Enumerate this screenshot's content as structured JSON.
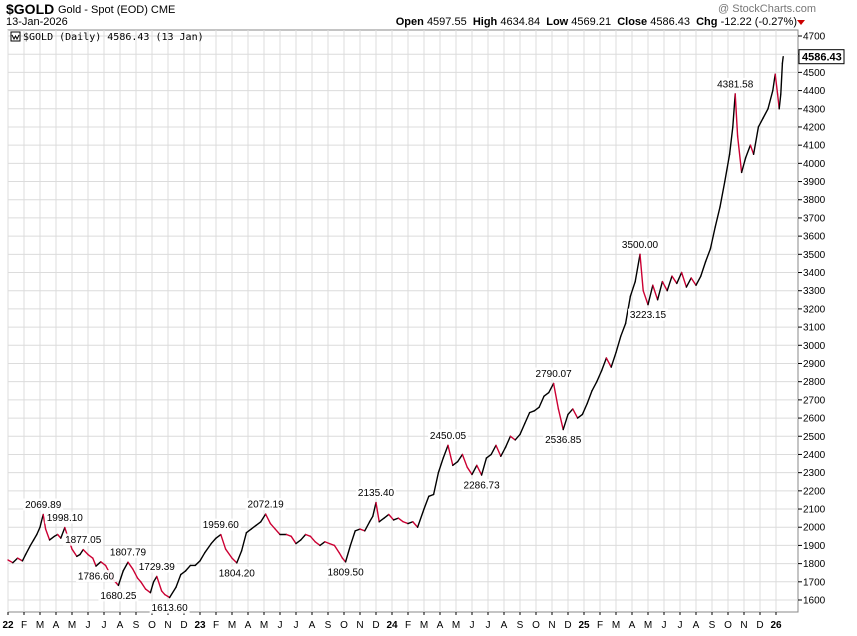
{
  "header": {
    "symbol": "$GOLD",
    "description": "Gold - Spot (EOD)",
    "exchange": "CME",
    "date": "13-Jan-2026",
    "watermark": "@ StockCharts.com",
    "open_label": "Open",
    "open": "4597.55",
    "high_label": "High",
    "high": "4634.84",
    "low_label": "Low",
    "low": "4569.21",
    "close_label": "Close",
    "close": "4586.43",
    "chg_label": "Chg",
    "chg": "-12.22 (-0.27%)",
    "chg_color": "#cc0000"
  },
  "chart_data": {
    "type": "line",
    "title": "$GOLD Gold - Spot (EOD)",
    "legend": "$GOLD (Daily) 4586.43 (13 Jan)",
    "last_value": "4586.43",
    "ylim": [
      1530,
      4700
    ],
    "yticks": [
      1600,
      1700,
      1800,
      1900,
      2000,
      2100,
      2200,
      2300,
      2400,
      2500,
      2600,
      2700,
      2800,
      2900,
      3000,
      3100,
      3200,
      3300,
      3400,
      3500,
      3600,
      3700,
      3800,
      3900,
      4000,
      4100,
      4200,
      4300,
      4400,
      4500,
      4600,
      4700
    ],
    "xlim": [
      0,
      48.45
    ],
    "xticks": [
      {
        "label": "22",
        "m": 0,
        "year": true
      },
      {
        "label": "F",
        "m": 1
      },
      {
        "label": "M",
        "m": 2
      },
      {
        "label": "A",
        "m": 3
      },
      {
        "label": "M",
        "m": 4
      },
      {
        "label": "J",
        "m": 5
      },
      {
        "label": "J",
        "m": 6
      },
      {
        "label": "A",
        "m": 7
      },
      {
        "label": "S",
        "m": 8
      },
      {
        "label": "O",
        "m": 9
      },
      {
        "label": "N",
        "m": 10
      },
      {
        "label": "D",
        "m": 11
      },
      {
        "label": "23",
        "m": 12,
        "year": true
      },
      {
        "label": "F",
        "m": 13
      },
      {
        "label": "M",
        "m": 14
      },
      {
        "label": "A",
        "m": 15
      },
      {
        "label": "M",
        "m": 16
      },
      {
        "label": "J",
        "m": 17
      },
      {
        "label": "J",
        "m": 18
      },
      {
        "label": "A",
        "m": 19
      },
      {
        "label": "S",
        "m": 20
      },
      {
        "label": "O",
        "m": 21
      },
      {
        "label": "N",
        "m": 22
      },
      {
        "label": "D",
        "m": 23
      },
      {
        "label": "24",
        "m": 24,
        "year": true
      },
      {
        "label": "F",
        "m": 25
      },
      {
        "label": "M",
        "m": 26
      },
      {
        "label": "A",
        "m": 27
      },
      {
        "label": "M",
        "m": 28
      },
      {
        "label": "J",
        "m": 29
      },
      {
        "label": "J",
        "m": 30
      },
      {
        "label": "A",
        "m": 31
      },
      {
        "label": "S",
        "m": 32
      },
      {
        "label": "O",
        "m": 33
      },
      {
        "label": "N",
        "m": 34
      },
      {
        "label": "D",
        "m": 35
      },
      {
        "label": "25",
        "m": 36,
        "year": true
      },
      {
        "label": "F",
        "m": 37
      },
      {
        "label": "M",
        "m": 38
      },
      {
        "label": "A",
        "m": 39
      },
      {
        "label": "M",
        "m": 40
      },
      {
        "label": "J",
        "m": 41
      },
      {
        "label": "J",
        "m": 42
      },
      {
        "label": "A",
        "m": 43
      },
      {
        "label": "S",
        "m": 44
      },
      {
        "label": "O",
        "m": 45
      },
      {
        "label": "N",
        "m": 46
      },
      {
        "label": "D",
        "m": 47
      },
      {
        "label": "26",
        "m": 48,
        "year": true
      }
    ],
    "series": [
      {
        "name": "$GOLD",
        "points": [
          [
            0,
            1820
          ],
          [
            0.3,
            1805
          ],
          [
            0.6,
            1830
          ],
          [
            0.9,
            1815
          ],
          [
            1.1,
            1850
          ],
          [
            1.4,
            1900
          ],
          [
            1.6,
            1930
          ],
          [
            1.8,
            1960
          ],
          [
            2.0,
            2000
          ],
          [
            2.2,
            2069.89
          ],
          [
            2.35,
            1990
          ],
          [
            2.6,
            1930
          ],
          [
            2.9,
            1950
          ],
          [
            3.1,
            1960
          ],
          [
            3.3,
            1940
          ],
          [
            3.55,
            1998.1
          ],
          [
            3.8,
            1930
          ],
          [
            4.0,
            1880
          ],
          [
            4.3,
            1840
          ],
          [
            4.5,
            1850
          ],
          [
            4.7,
            1877.05
          ],
          [
            5.0,
            1850
          ],
          [
            5.3,
            1830
          ],
          [
            5.5,
            1786.6
          ],
          [
            5.8,
            1810
          ],
          [
            6.1,
            1790
          ],
          [
            6.4,
            1740
          ],
          [
            6.6,
            1710
          ],
          [
            6.9,
            1680.25
          ],
          [
            7.2,
            1760
          ],
          [
            7.5,
            1807.79
          ],
          [
            7.8,
            1770
          ],
          [
            8.1,
            1720
          ],
          [
            8.3,
            1700
          ],
          [
            8.6,
            1660
          ],
          [
            8.9,
            1640
          ],
          [
            9.1,
            1700
          ],
          [
            9.3,
            1729.39
          ],
          [
            9.6,
            1650
          ],
          [
            9.8,
            1630
          ],
          [
            10.1,
            1613.6
          ],
          [
            10.5,
            1670
          ],
          [
            10.8,
            1740
          ],
          [
            11.1,
            1760
          ],
          [
            11.4,
            1790
          ],
          [
            11.7,
            1790
          ],
          [
            12.0,
            1815
          ],
          [
            12.3,
            1860
          ],
          [
            12.7,
            1910
          ],
          [
            13.0,
            1940
          ],
          [
            13.3,
            1959.6
          ],
          [
            13.6,
            1880
          ],
          [
            14.0,
            1830
          ],
          [
            14.3,
            1804.2
          ],
          [
            14.6,
            1870
          ],
          [
            14.9,
            1970
          ],
          [
            15.2,
            1990
          ],
          [
            15.5,
            2010
          ],
          [
            15.8,
            2030
          ],
          [
            16.1,
            2072.19
          ],
          [
            16.4,
            2020
          ],
          [
            16.7,
            1990
          ],
          [
            17.0,
            1960
          ],
          [
            17.4,
            1960
          ],
          [
            17.7,
            1950
          ],
          [
            18.0,
            1910
          ],
          [
            18.3,
            1930
          ],
          [
            18.6,
            1960
          ],
          [
            18.9,
            1950
          ],
          [
            19.2,
            1920
          ],
          [
            19.5,
            1900
          ],
          [
            19.8,
            1920
          ],
          [
            20.1,
            1910
          ],
          [
            20.4,
            1900
          ],
          [
            20.7,
            1860
          ],
          [
            20.9,
            1830
          ],
          [
            21.1,
            1809.5
          ],
          [
            21.4,
            1900
          ],
          [
            21.7,
            1980
          ],
          [
            22.0,
            1990
          ],
          [
            22.3,
            1980
          ],
          [
            22.6,
            2030
          ],
          [
            22.8,
            2060
          ],
          [
            23.0,
            2135.4
          ],
          [
            23.2,
            2030
          ],
          [
            23.5,
            2050
          ],
          [
            23.8,
            2070
          ],
          [
            24.1,
            2040
          ],
          [
            24.4,
            2050
          ],
          [
            24.7,
            2030
          ],
          [
            25.0,
            2020
          ],
          [
            25.3,
            2030
          ],
          [
            25.6,
            2000
          ],
          [
            26.0,
            2100
          ],
          [
            26.3,
            2170
          ],
          [
            26.6,
            2180
          ],
          [
            26.9,
            2300
          ],
          [
            27.2,
            2380
          ],
          [
            27.5,
            2450.05
          ],
          [
            27.8,
            2340
          ],
          [
            28.1,
            2360
          ],
          [
            28.4,
            2400
          ],
          [
            28.7,
            2330
          ],
          [
            29.0,
            2290
          ],
          [
            29.3,
            2340
          ],
          [
            29.6,
            2286.73
          ],
          [
            29.9,
            2380
          ],
          [
            30.2,
            2400
          ],
          [
            30.5,
            2450
          ],
          [
            30.8,
            2390
          ],
          [
            31.1,
            2440
          ],
          [
            31.4,
            2500
          ],
          [
            31.7,
            2480
          ],
          [
            32.0,
            2510
          ],
          [
            32.3,
            2570
          ],
          [
            32.6,
            2630
          ],
          [
            32.9,
            2640
          ],
          [
            33.2,
            2660
          ],
          [
            33.5,
            2720
          ],
          [
            33.8,
            2740
          ],
          [
            34.1,
            2790.07
          ],
          [
            34.4,
            2650
          ],
          [
            34.7,
            2536.85
          ],
          [
            35.0,
            2620
          ],
          [
            35.3,
            2650
          ],
          [
            35.6,
            2600
          ],
          [
            35.9,
            2620
          ],
          [
            36.2,
            2680
          ],
          [
            36.5,
            2750
          ],
          [
            36.8,
            2800
          ],
          [
            37.1,
            2860
          ],
          [
            37.4,
            2930
          ],
          [
            37.7,
            2880
          ],
          [
            38.0,
            2960
          ],
          [
            38.3,
            3050
          ],
          [
            38.6,
            3120
          ],
          [
            38.9,
            3270
          ],
          [
            39.2,
            3350
          ],
          [
            39.5,
            3500
          ],
          [
            39.7,
            3300
          ],
          [
            40.0,
            3223.15
          ],
          [
            40.3,
            3330
          ],
          [
            40.6,
            3250
          ],
          [
            40.9,
            3350
          ],
          [
            41.2,
            3300
          ],
          [
            41.5,
            3380
          ],
          [
            41.8,
            3340
          ],
          [
            42.1,
            3400
          ],
          [
            42.4,
            3320
          ],
          [
            42.7,
            3370
          ],
          [
            43.0,
            3330
          ],
          [
            43.3,
            3380
          ],
          [
            43.6,
            3460
          ],
          [
            43.9,
            3530
          ],
          [
            44.2,
            3650
          ],
          [
            44.5,
            3760
          ],
          [
            44.8,
            3900
          ],
          [
            45.1,
            4050
          ],
          [
            45.3,
            4200
          ],
          [
            45.45,
            4381.58
          ],
          [
            45.6,
            4150
          ],
          [
            45.85,
            3950
          ],
          [
            46.1,
            4030
          ],
          [
            46.4,
            4100
          ],
          [
            46.6,
            4050
          ],
          [
            46.9,
            4200
          ],
          [
            47.2,
            4250
          ],
          [
            47.5,
            4300
          ],
          [
            47.8,
            4400
          ],
          [
            47.95,
            4490
          ],
          [
            48.1,
            4380
          ],
          [
            48.2,
            4300
          ],
          [
            48.3,
            4380
          ],
          [
            48.4,
            4550
          ],
          [
            48.45,
            4586.43
          ]
        ]
      }
    ],
    "annotations": [
      {
        "text": "2069.89",
        "x": 2.2,
        "y": 2069.89,
        "pos": "above"
      },
      {
        "text": "1998.10",
        "x": 3.55,
        "y": 1998.1,
        "pos": "above"
      },
      {
        "text": "1877.05",
        "x": 4.7,
        "y": 1877.05,
        "pos": "above"
      },
      {
        "text": "1786.60",
        "x": 5.5,
        "y": 1786.6,
        "pos": "below"
      },
      {
        "text": "1807.79",
        "x": 7.5,
        "y": 1807.79,
        "pos": "above"
      },
      {
        "text": "1680.25",
        "x": 6.9,
        "y": 1680.25,
        "pos": "below"
      },
      {
        "text": "1729.39",
        "x": 9.3,
        "y": 1729.39,
        "pos": "above"
      },
      {
        "text": "1613.60",
        "x": 10.1,
        "y": 1613.6,
        "pos": "below"
      },
      {
        "text": "1959.60",
        "x": 13.3,
        "y": 1959.6,
        "pos": "above"
      },
      {
        "text": "1804.20",
        "x": 14.3,
        "y": 1804.2,
        "pos": "below"
      },
      {
        "text": "2072.19",
        "x": 16.1,
        "y": 2072.19,
        "pos": "above"
      },
      {
        "text": "1809.50",
        "x": 21.1,
        "y": 1809.5,
        "pos": "below"
      },
      {
        "text": "2135.40",
        "x": 23.0,
        "y": 2135.4,
        "pos": "above"
      },
      {
        "text": "2450.05",
        "x": 27.5,
        "y": 2450.05,
        "pos": "above"
      },
      {
        "text": "2286.73",
        "x": 29.6,
        "y": 2286.73,
        "pos": "below"
      },
      {
        "text": "2790.07",
        "x": 34.1,
        "y": 2790.07,
        "pos": "above"
      },
      {
        "text": "2536.85",
        "x": 34.7,
        "y": 2536.85,
        "pos": "below"
      },
      {
        "text": "3500.00",
        "x": 39.5,
        "y": 3500,
        "pos": "above"
      },
      {
        "text": "3223.15",
        "x": 40.0,
        "y": 3223.15,
        "pos": "below"
      },
      {
        "text": "4381.58",
        "x": 45.45,
        "y": 4381.58,
        "pos": "above"
      }
    ],
    "colors": {
      "line": "#000000",
      "down": "#cc0033",
      "grid": "#dcdcdc"
    }
  }
}
